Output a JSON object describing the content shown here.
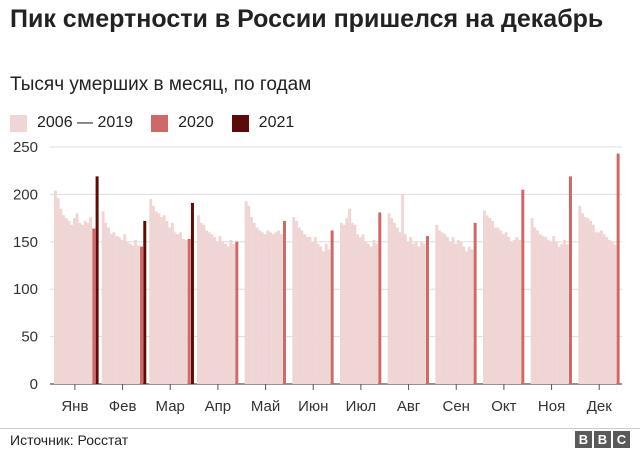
{
  "title": "Пик смертности в России пришелся на декабрь",
  "subtitle": "Тысяч умерших в месяц, по годам",
  "legend": [
    {
      "label": "2006 — 2019",
      "color": "#f0d5d5"
    },
    {
      "label": "2020",
      "color": "#d06868"
    },
    {
      "label": "2021",
      "color": "#5c0a0a"
    }
  ],
  "source": "Источник: Росстат",
  "brand": [
    "B",
    "B",
    "C"
  ],
  "chart_data": {
    "type": "bar",
    "ylim": [
      0,
      250
    ],
    "yticks": [
      0,
      50,
      100,
      150,
      200,
      250
    ],
    "grid": true,
    "categories": [
      "Янв",
      "Фев",
      "Мар",
      "Апр",
      "Май",
      "Июн",
      "Июл",
      "Авг",
      "Сен",
      "Окт",
      "Ноя",
      "Дек"
    ],
    "series": [
      {
        "name": "2006 — 2019",
        "color": "#f0d5d5",
        "values": [
          [
            204,
            196,
            185,
            178,
            175,
            172,
            168,
            175,
            180,
            170,
            168,
            172,
            170,
            176
          ],
          [
            182,
            170,
            165,
            158,
            160,
            156,
            155,
            152,
            158,
            150,
            148,
            146,
            152,
            146
          ],
          [
            195,
            188,
            182,
            180,
            176,
            178,
            172,
            165,
            170,
            160,
            158,
            160,
            153,
            152
          ],
          [
            178,
            170,
            168,
            162,
            160,
            158,
            155,
            150,
            156,
            150,
            148,
            145,
            152,
            148
          ],
          [
            193,
            188,
            176,
            170,
            165,
            162,
            160,
            158,
            162,
            160,
            158,
            160,
            162,
            158
          ],
          [
            176,
            172,
            165,
            162,
            158,
            155,
            155,
            150,
            155,
            148,
            145,
            140,
            148,
            142
          ],
          [
            170,
            168,
            175,
            185,
            170,
            168,
            158,
            155,
            158,
            150,
            148,
            145,
            152,
            148
          ],
          [
            180,
            175,
            170,
            165,
            160,
            200,
            158,
            150,
            155,
            148,
            150,
            145,
            150,
            148
          ],
          [
            168,
            162,
            160,
            158,
            155,
            150,
            155,
            148,
            152,
            150,
            145,
            140,
            145,
            142
          ],
          [
            183,
            178,
            175,
            172,
            165,
            165,
            162,
            158,
            160,
            155,
            150,
            152,
            155,
            152
          ],
          [
            175,
            165,
            162,
            158,
            156,
            155,
            152,
            150,
            156,
            150,
            145,
            148,
            152,
            147
          ],
          [
            188,
            180,
            176,
            175,
            172,
            168,
            160,
            160,
            162,
            158,
            155,
            152,
            150,
            147
          ]
        ]
      },
      {
        "name": "2020",
        "color": "#d06868",
        "values": [
          164,
          145,
          153,
          150,
          172,
          162,
          181,
          156,
          170,
          205,
          219,
          243
        ]
      },
      {
        "name": "2021",
        "color": "#5c0a0a",
        "values": [
          219,
          172,
          191,
          null,
          null,
          null,
          null,
          null,
          null,
          null,
          null,
          null
        ]
      }
    ]
  }
}
